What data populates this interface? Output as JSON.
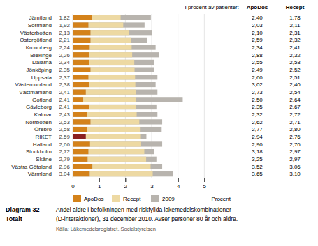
{
  "chart_data": {
    "type": "bar",
    "orientation": "horizontal",
    "stacked": true,
    "grid": true,
    "title": "Diagram 32",
    "subtitle": "Totalt",
    "caption": [
      "Andel äldre i befolkningen med riskfyllda läkemedelskombinationer",
      "(D-interaktioner), 31 december 2010. Avser personer 80 år och äldre."
    ],
    "source": "Källa: Läkemedelsregistret, Socialstyrelsen",
    "xlabel": "Procent",
    "xlim": [
      0,
      6
    ],
    "xticks": [
      0,
      1,
      2,
      3,
      4,
      5
    ],
    "categories": [
      "Jämtland",
      "Sörmland",
      "Västerbotten",
      "Östergötland",
      "Kronoberg",
      "Blekinge",
      "Dalarna",
      "Jönköping",
      "Uppsala",
      "Västernorrland",
      "Västmanland",
      "Gotland",
      "Gävleborg",
      "Kalmar",
      "Norrbotten",
      "Örebro",
      "RIKET",
      "Halland",
      "Stockholm",
      "Skåne",
      "Västra Götaland",
      "Värmland"
    ],
    "series": [
      {
        "name": "ApoDos",
        "type": "bar",
        "color": "#D4821A",
        "colors": [
          "#D4821A",
          "#D4821A",
          "#D4821A",
          "#D4821A",
          "#D4821A",
          "#D4821A",
          "#D4821A",
          "#D4821A",
          "#D4821A",
          "#D4821A",
          "#D4821A",
          "#D4821A",
          "#D4821A",
          "#D4821A",
          "#D4821A",
          "#D4821A",
          "#8B2020",
          "#D4821A",
          "#D4821A",
          "#D4821A",
          "#D4821A",
          "#D4821A"
        ],
        "values": [
          0.72,
          0.6,
          0.68,
          0.68,
          0.65,
          0.62,
          0.63,
          0.68,
          0.6,
          0.63,
          0.5,
          0.4,
          0.62,
          0.55,
          0.68,
          0.55,
          0.5,
          0.66,
          0.6,
          0.57,
          0.75,
          0.65
        ]
      },
      {
        "name": "Recept",
        "type": "bar",
        "color": "#EDD9A3",
        "values": [
          1.1,
          1.32,
          1.45,
          1.53,
          1.59,
          1.64,
          1.71,
          1.67,
          1.77,
          1.75,
          1.91,
          2.01,
          1.79,
          1.88,
          1.85,
          2.03,
          2.09,
          1.94,
          2.12,
          2.22,
          2.21,
          2.39
        ]
      },
      {
        "name": "2009",
        "type": "background",
        "color": "#B8B4AE",
        "values": [
          2.97,
          2.73,
          3.0,
          2.82,
          3.15,
          3.28,
          3.1,
          3.08,
          3.22,
          3.15,
          3.22,
          4.18,
          3.18,
          3.22,
          3.4,
          3.38,
          2.8,
          3.4,
          3.08,
          3.18,
          3.4,
          3.8
        ]
      }
    ],
    "total_labels": [
      "1,82",
      "1,92",
      "2,13",
      "2,21",
      "2,24",
      "2,26",
      "2,34",
      "2,35",
      "2,37",
      "2,38",
      "2,41",
      "2,41",
      "2,41",
      "2,43",
      "2,53",
      "2,58",
      "2,59",
      "2,60",
      "2,72",
      "2,79",
      "2,96",
      "3,04"
    ],
    "table": {
      "title": "I procent av patienter:",
      "columns": [
        {
          "name": "ApoDos",
          "labels": [
            "2,40",
            "2,03",
            "2,10",
            "2,59",
            "2,34",
            "2,88",
            "2,55",
            "2,49",
            "2,60",
            "3,02",
            "2,73",
            "2,50",
            "2,35",
            "2,32",
            "2,62",
            "2,77",
            "2,94",
            "2,90",
            "3,18",
            "3,25",
            "3,52",
            "3,65"
          ]
        },
        {
          "name": "Recept",
          "labels": [
            "1,78",
            "2,11",
            "2,31",
            "2,32",
            "2,41",
            "2,32",
            "2,53",
            "2,52",
            "2,51",
            "2,40",
            "2,54",
            "2,64",
            "2,67",
            "2,72",
            "2,71",
            "2,80",
            "2,76",
            "2,76",
            "2,97",
            "2,97",
            "3,06",
            "3,10"
          ]
        }
      ]
    }
  }
}
